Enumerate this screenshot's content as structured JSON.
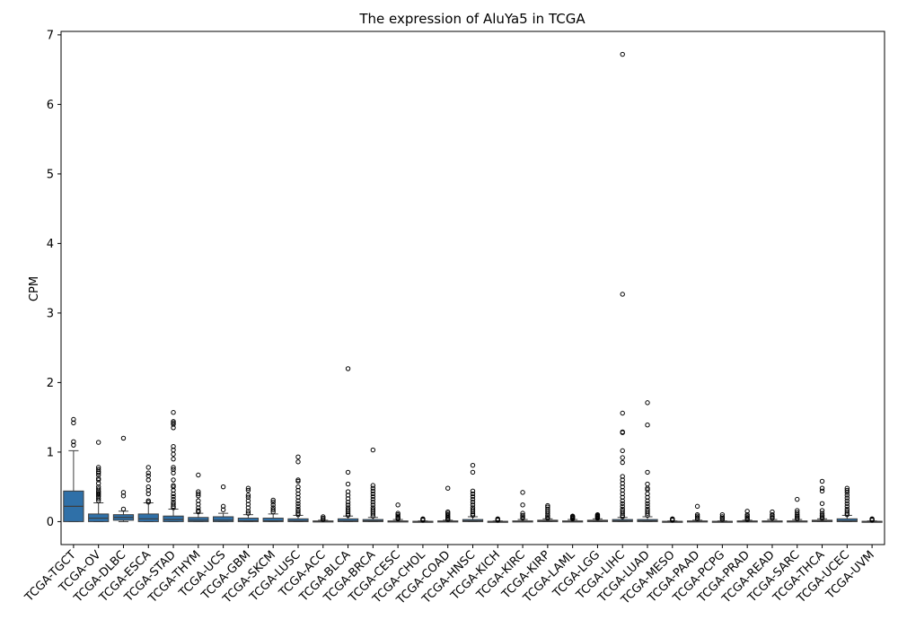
{
  "chart_data": {
    "type": "box",
    "title": "The expression of AluYa5 in TCGA",
    "xlabel": "",
    "ylabel": "CPM",
    "ylim": [
      -0.33,
      7.05
    ],
    "yticks": [
      0,
      1,
      2,
      3,
      4,
      5,
      6,
      7
    ],
    "box_color": "#2f70a8",
    "grid": false,
    "categories": [
      "TCGA-TGCT",
      "TCGA-OV",
      "TCGA-DLBC",
      "TCGA-ESCA",
      "TCGA-STAD",
      "TCGA-THYM",
      "TCGA-UCS",
      "TCGA-GBM",
      "TCGA-SKCM",
      "TCGA-LUSC",
      "TCGA-ACC",
      "TCGA-BLCA",
      "TCGA-BRCA",
      "TCGA-CESC",
      "TCGA-CHOL",
      "TCGA-COAD",
      "TCGA-HNSC",
      "TCGA-KICH",
      "TCGA-KIRC",
      "TCGA-KIRP",
      "TCGA-LAML",
      "TCGA-LGG",
      "TCGA-LIHC",
      "TCGA-LUAD",
      "TCGA-MESO",
      "TCGA-PAAD",
      "TCGA-PCPG",
      "TCGA-PRAD",
      "TCGA-READ",
      "TCGA-SARC",
      "TCGA-THCA",
      "TCGA-UCEC",
      "TCGA-UVM"
    ],
    "boxes": [
      {
        "q1": 0.0,
        "median": 0.22,
        "q3": 0.44,
        "whisker_low": 0.0,
        "whisker_high": 1.02,
        "outliers": [
          1.47,
          1.42,
          1.15,
          1.1
        ]
      },
      {
        "q1": 0.0,
        "median": 0.05,
        "q3": 0.11,
        "whisker_low": 0.0,
        "whisker_high": 0.27,
        "outliers": [
          1.14,
          0.78,
          0.75,
          0.72,
          0.7,
          0.67,
          0.62,
          0.6,
          0.55,
          0.5,
          0.47,
          0.44,
          0.42,
          0.4,
          0.38,
          0.36,
          0.33,
          0.3
        ]
      },
      {
        "q1": 0.02,
        "median": 0.06,
        "q3": 0.1,
        "whisker_low": 0.0,
        "whisker_high": 0.15,
        "outliers": [
          1.2,
          0.42,
          0.37,
          0.18
        ]
      },
      {
        "q1": 0.0,
        "median": 0.04,
        "q3": 0.11,
        "whisker_low": 0.0,
        "whisker_high": 0.27,
        "outliers": [
          0.78,
          0.7,
          0.66,
          0.6,
          0.5,
          0.45,
          0.4,
          0.3,
          0.28
        ]
      },
      {
        "q1": 0.0,
        "median": 0.03,
        "q3": 0.08,
        "whisker_low": 0.0,
        "whisker_high": 0.18,
        "outliers": [
          1.57,
          1.44,
          1.42,
          1.4,
          1.35,
          1.08,
          1.03,
          0.97,
          0.9,
          0.78,
          0.75,
          0.7,
          0.6,
          0.52,
          0.5,
          0.45,
          0.4,
          0.36,
          0.32,
          0.28,
          0.25,
          0.22,
          0.2
        ]
      },
      {
        "q1": 0.0,
        "median": 0.02,
        "q3": 0.06,
        "whisker_low": 0.0,
        "whisker_high": 0.12,
        "outliers": [
          0.67,
          0.43,
          0.4,
          0.37,
          0.3,
          0.25,
          0.2,
          0.16,
          0.14
        ]
      },
      {
        "q1": 0.0,
        "median": 0.02,
        "q3": 0.07,
        "whisker_low": 0.0,
        "whisker_high": 0.12,
        "outliers": [
          0.5,
          0.22,
          0.17
        ]
      },
      {
        "q1": 0.0,
        "median": 0.01,
        "q3": 0.05,
        "whisker_low": 0.0,
        "whisker_high": 0.1,
        "outliers": [
          0.48,
          0.45,
          0.38,
          0.35,
          0.3,
          0.25,
          0.2,
          0.15,
          0.12
        ]
      },
      {
        "q1": 0.0,
        "median": 0.01,
        "q3": 0.05,
        "whisker_low": 0.0,
        "whisker_high": 0.11,
        "outliers": [
          0.31,
          0.28,
          0.24,
          0.2,
          0.17,
          0.14
        ]
      },
      {
        "q1": 0.0,
        "median": 0.01,
        "q3": 0.04,
        "whisker_low": 0.0,
        "whisker_high": 0.09,
        "outliers": [
          0.93,
          0.86,
          0.6,
          0.58,
          0.5,
          0.45,
          0.4,
          0.35,
          0.3,
          0.26,
          0.22,
          0.18,
          0.15,
          0.12,
          0.1
        ]
      },
      {
        "q1": 0.0,
        "median": 0.0,
        "q3": 0.01,
        "whisker_low": 0.0,
        "whisker_high": 0.02,
        "outliers": [
          0.07,
          0.05,
          0.03
        ]
      },
      {
        "q1": 0.0,
        "median": 0.01,
        "q3": 0.04,
        "whisker_low": 0.0,
        "whisker_high": 0.08,
        "outliers": [
          2.2,
          0.71,
          0.54,
          0.43,
          0.38,
          0.33,
          0.28,
          0.24,
          0.2,
          0.17,
          0.14,
          0.11,
          0.09
        ]
      },
      {
        "q1": 0.0,
        "median": 0.01,
        "q3": 0.03,
        "whisker_low": 0.0,
        "whisker_high": 0.06,
        "outliers": [
          1.03,
          0.52,
          0.48,
          0.44,
          0.4,
          0.36,
          0.32,
          0.28,
          0.24,
          0.2,
          0.17,
          0.14,
          0.11,
          0.08
        ]
      },
      {
        "q1": 0.0,
        "median": 0.0,
        "q3": 0.01,
        "whisker_low": 0.0,
        "whisker_high": 0.03,
        "outliers": [
          0.24,
          0.12,
          0.1,
          0.08,
          0.06,
          0.05,
          0.04
        ]
      },
      {
        "q1": 0.0,
        "median": 0.0,
        "q3": 0.005,
        "whisker_low": 0.0,
        "whisker_high": 0.01,
        "outliers": [
          0.04,
          0.03,
          0.02
        ]
      },
      {
        "q1": 0.0,
        "median": 0.0,
        "q3": 0.01,
        "whisker_low": 0.0,
        "whisker_high": 0.02,
        "outliers": [
          0.48,
          0.14,
          0.12,
          0.1,
          0.08,
          0.06,
          0.04,
          0.03
        ]
      },
      {
        "q1": 0.0,
        "median": 0.01,
        "q3": 0.03,
        "whisker_low": 0.0,
        "whisker_high": 0.07,
        "outliers": [
          0.81,
          0.71,
          0.44,
          0.4,
          0.36,
          0.32,
          0.28,
          0.24,
          0.2,
          0.17,
          0.14,
          0.11,
          0.09
        ]
      },
      {
        "q1": 0.0,
        "median": 0.0,
        "q3": 0.005,
        "whisker_low": 0.0,
        "whisker_high": 0.01,
        "outliers": [
          0.04,
          0.03,
          0.02
        ]
      },
      {
        "q1": 0.0,
        "median": 0.0,
        "q3": 0.01,
        "whisker_low": 0.0,
        "whisker_high": 0.03,
        "outliers": [
          0.42,
          0.24,
          0.12,
          0.09,
          0.07,
          0.05
        ]
      },
      {
        "q1": 0.0,
        "median": 0.01,
        "q3": 0.02,
        "whisker_low": 0.0,
        "whisker_high": 0.04,
        "outliers": [
          0.23,
          0.21,
          0.18,
          0.15,
          0.12,
          0.09,
          0.07,
          0.05
        ]
      },
      {
        "q1": 0.0,
        "median": 0.0,
        "q3": 0.01,
        "whisker_low": 0.0,
        "whisker_high": 0.03,
        "outliers": [
          0.08,
          0.07,
          0.06,
          0.05,
          0.04
        ]
      },
      {
        "q1": 0.0,
        "median": 0.01,
        "q3": 0.02,
        "whisker_low": 0.0,
        "whisker_high": 0.04,
        "outliers": [
          0.1,
          0.09,
          0.08,
          0.07,
          0.06,
          0.05
        ]
      },
      {
        "q1": 0.0,
        "median": 0.01,
        "q3": 0.03,
        "whisker_low": 0.0,
        "whisker_high": 0.06,
        "outliers": [
          6.72,
          3.27,
          1.56,
          1.29,
          1.28,
          1.02,
          0.92,
          0.85,
          0.65,
          0.6,
          0.55,
          0.5,
          0.45,
          0.4,
          0.35,
          0.3,
          0.26,
          0.22,
          0.18,
          0.15,
          0.12,
          0.09,
          0.07
        ]
      },
      {
        "q1": 0.0,
        "median": 0.01,
        "q3": 0.03,
        "whisker_low": 0.0,
        "whisker_high": 0.07,
        "outliers": [
          1.71,
          1.39,
          0.71,
          0.54,
          0.48,
          0.46,
          0.4,
          0.35,
          0.3,
          0.26,
          0.22,
          0.18,
          0.15,
          0.12,
          0.09
        ]
      },
      {
        "q1": 0.0,
        "median": 0.0,
        "q3": 0.005,
        "whisker_low": 0.0,
        "whisker_high": 0.01,
        "outliers": [
          0.04,
          0.03,
          0.02
        ]
      },
      {
        "q1": 0.0,
        "median": 0.0,
        "q3": 0.01,
        "whisker_low": 0.0,
        "whisker_high": 0.02,
        "outliers": [
          0.22,
          0.1,
          0.08,
          0.06,
          0.04
        ]
      },
      {
        "q1": 0.0,
        "median": 0.0,
        "q3": 0.005,
        "whisker_low": 0.0,
        "whisker_high": 0.01,
        "outliers": [
          0.1,
          0.07,
          0.05,
          0.03
        ]
      },
      {
        "q1": 0.0,
        "median": 0.0,
        "q3": 0.01,
        "whisker_low": 0.0,
        "whisker_high": 0.02,
        "outliers": [
          0.15,
          0.1,
          0.08,
          0.06,
          0.04,
          0.03
        ]
      },
      {
        "q1": 0.0,
        "median": 0.0,
        "q3": 0.01,
        "whisker_low": 0.0,
        "whisker_high": 0.03,
        "outliers": [
          0.14,
          0.1,
          0.08,
          0.06,
          0.05
        ]
      },
      {
        "q1": 0.0,
        "median": 0.0,
        "q3": 0.01,
        "whisker_low": 0.0,
        "whisker_high": 0.03,
        "outliers": [
          0.32,
          0.16,
          0.13,
          0.1,
          0.08,
          0.06,
          0.04
        ]
      },
      {
        "q1": 0.0,
        "median": 0.01,
        "q3": 0.02,
        "whisker_low": 0.0,
        "whisker_high": 0.04,
        "outliers": [
          0.58,
          0.48,
          0.44,
          0.26,
          0.16,
          0.12,
          0.09,
          0.07,
          0.05
        ]
      },
      {
        "q1": 0.0,
        "median": 0.01,
        "q3": 0.04,
        "whisker_low": 0.0,
        "whisker_high": 0.09,
        "outliers": [
          0.48,
          0.45,
          0.42,
          0.38,
          0.34,
          0.3,
          0.26,
          0.22,
          0.18,
          0.15,
          0.12,
          0.1
        ]
      },
      {
        "q1": 0.0,
        "median": 0.0,
        "q3": 0.005,
        "whisker_low": 0.0,
        "whisker_high": 0.01,
        "outliers": [
          0.04,
          0.03,
          0.02
        ]
      }
    ]
  }
}
